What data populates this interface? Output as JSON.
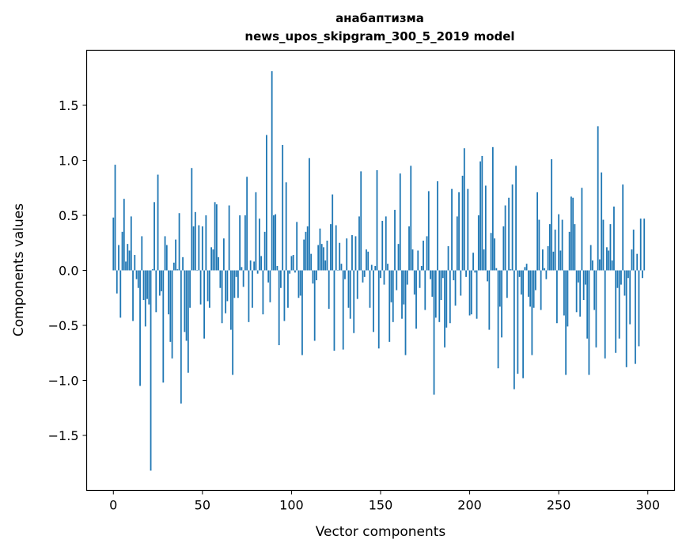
{
  "chart_data": {
    "type": "bar",
    "title": "анабаптизма",
    "subtitle": "news_upos_skipgram_300_5_2019 model",
    "xlabel": "Vector components",
    "ylabel": "Components values",
    "xlim": [
      -15,
      315
    ],
    "ylim": [
      -2.0,
      2.0
    ],
    "xticks": [
      0,
      50,
      100,
      150,
      200,
      250,
      300
    ],
    "xtick_labels": [
      "0",
      "50",
      "100",
      "150",
      "200",
      "250",
      "300"
    ],
    "yticks": [
      -1.5,
      -1.0,
      -0.5,
      0.0,
      0.5,
      1.0,
      1.5
    ],
    "ytick_labels": [
      "−1.5",
      "−1.0",
      "−0.5",
      "0.0",
      "0.5",
      "1.0",
      "1.5"
    ],
    "grid": false,
    "bar_color": "#1f77b4",
    "values": [
      0.48,
      0.96,
      -0.21,
      0.23,
      -0.43,
      0.35,
      0.65,
      0.08,
      0.24,
      0.18,
      0.49,
      -0.46,
      0.14,
      -0.08,
      -0.16,
      -1.05,
      0.31,
      -0.27,
      -0.51,
      -0.26,
      -0.31,
      -1.82,
      0.01,
      0.62,
      -0.38,
      0.87,
      -0.23,
      -0.19,
      -1.02,
      0.31,
      0.23,
      -0.4,
      -0.65,
      -0.8,
      0.07,
      0.28,
      0.01,
      0.52,
      -1.21,
      0.12,
      -0.56,
      -0.64,
      -0.93,
      -0.34,
      0.93,
      0.4,
      0.53,
      0.0,
      0.41,
      -0.31,
      0.4,
      -0.62,
      0.5,
      -0.28,
      -0.34,
      0.21,
      0.19,
      0.62,
      0.6,
      0.12,
      -0.16,
      -0.48,
      0.29,
      -0.39,
      -0.28,
      0.59,
      -0.54,
      -0.95,
      -0.25,
      -0.06,
      -0.25,
      0.5,
      0.03,
      -0.15,
      0.5,
      0.85,
      -0.47,
      0.09,
      -0.34,
      0.08,
      0.71,
      -0.03,
      0.47,
      0.13,
      -0.4,
      0.35,
      1.23,
      -0.11,
      -0.29,
      1.81,
      0.5,
      0.51,
      0.04,
      -0.68,
      -0.16,
      1.14,
      -0.46,
      0.8,
      -0.34,
      -0.03,
      0.13,
      0.14,
      -0.02,
      0.44,
      -0.25,
      -0.23,
      -0.77,
      0.28,
      0.35,
      0.4,
      1.02,
      0.15,
      -0.12,
      -0.64,
      -0.09,
      0.23,
      0.38,
      0.24,
      0.21,
      0.09,
      0.27,
      -0.35,
      0.42,
      0.69,
      -0.73,
      0.41,
      0.0,
      0.25,
      0.06,
      -0.72,
      -0.08,
      0.29,
      -0.34,
      -0.44,
      0.32,
      -0.57,
      0.31,
      -0.26,
      0.49,
      0.9,
      -0.11,
      -0.06,
      0.19,
      0.17,
      -0.34,
      0.05,
      -0.56,
      0.04,
      0.91,
      -0.71,
      -0.07,
      0.45,
      -0.13,
      0.49,
      0.06,
      -0.65,
      -0.29,
      -0.47,
      0.55,
      -0.18,
      0.24,
      0.88,
      -0.44,
      -0.31,
      -0.77,
      -0.13,
      0.4,
      0.95,
      0.19,
      -0.22,
      -0.53,
      0.18,
      -0.16,
      0.04,
      0.27,
      -0.36,
      0.31,
      0.72,
      -0.08,
      -0.24,
      -1.13,
      -0.43,
      0.81,
      -0.47,
      -0.27,
      -0.07,
      -0.7,
      -0.52,
      0.22,
      -0.48,
      0.74,
      -0.09,
      -0.32,
      0.49,
      0.71,
      -0.23,
      0.86,
      1.11,
      -0.06,
      0.74,
      -0.41,
      -0.4,
      0.16,
      -0.02,
      -0.44,
      0.5,
      0.99,
      1.04,
      0.19,
      0.77,
      -0.1,
      -0.54,
      0.34,
      1.12,
      0.29,
      0.02,
      -0.89,
      -0.33,
      -0.61,
      0.4,
      0.59,
      -0.25,
      0.66,
      0.01,
      0.78,
      -1.08,
      0.95,
      -0.94,
      -0.06,
      -0.22,
      -0.98,
      0.03,
      0.06,
      -0.24,
      -0.33,
      -0.77,
      -0.34,
      -0.18,
      0.71,
      0.46,
      -0.36,
      0.19,
      0.02,
      -0.08,
      0.22,
      0.42,
      1.01,
      0.17,
      0.37,
      -0.48,
      0.51,
      0.18,
      0.46,
      -0.41,
      -0.95,
      -0.51,
      0.35,
      0.67,
      0.66,
      0.42,
      -0.38,
      -0.11,
      -0.42,
      0.75,
      -0.27,
      -0.13,
      -0.62,
      -0.95,
      0.23,
      0.09,
      -0.36,
      -0.7,
      1.31,
      0.1,
      0.89,
      0.46,
      -0.8,
      0.21,
      0.18,
      0.42,
      0.09,
      0.58,
      -0.75,
      -0.16,
      -0.62,
      -0.13,
      0.78,
      -0.23,
      -0.88,
      -0.07,
      -0.49,
      0.19,
      0.37,
      -0.85,
      0.15,
      -0.69,
      0.47,
      -0.07,
      0.47
    ]
  }
}
